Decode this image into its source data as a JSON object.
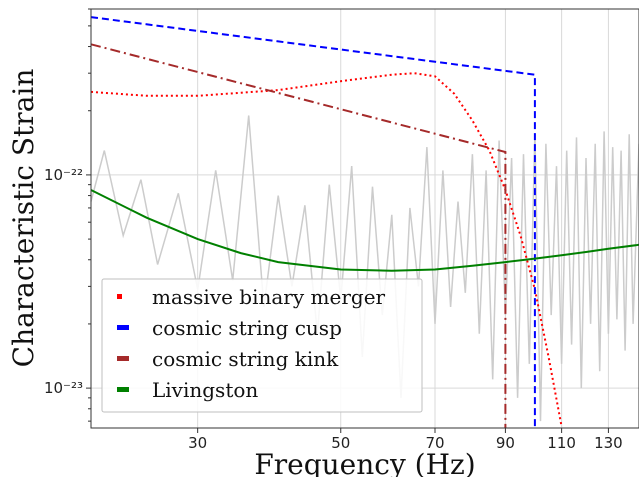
{
  "chart_data": {
    "type": "line",
    "xlabel": "Frequency (Hz)",
    "ylabel": "Characteristic Strain",
    "x_scale": "log",
    "y_scale": "log",
    "xlim": [
      20.5,
      145
    ],
    "ylim": [
      6.5e-24,
      6e-22
    ],
    "x_ticks": [
      30,
      50,
      70,
      90,
      110,
      130
    ],
    "x_tick_labels": [
      "30",
      "50",
      "70",
      "90",
      "110",
      "130"
    ],
    "y_ticks": [
      1e-23,
      1e-22
    ],
    "y_tick_labels": [
      "10⁻²³",
      "10⁻²²"
    ],
    "grid": true,
    "legend_position": "lower-left",
    "series": [
      {
        "name": "massive binary merger",
        "color": "#ff0000",
        "style": "dotted",
        "x": [
          20.5,
          25,
          30,
          40,
          50,
          60,
          65,
          70,
          75,
          80,
          85,
          90,
          95,
          100,
          105,
          110
        ],
        "y": [
          2.45e-22,
          2.35e-22,
          2.35e-22,
          2.5e-22,
          2.75e-22,
          2.95e-22,
          3e-22,
          2.9e-22,
          2.4e-22,
          1.8e-22,
          1.3e-22,
          8.5e-23,
          5.2e-23,
          2.9e-23,
          1.4e-23,
          6.6e-24
        ]
      },
      {
        "name": "cosmic string cusp",
        "color": "#0000ff",
        "style": "dashed",
        "x": [
          20.5,
          100,
          100
        ],
        "y": [
          5.5e-22,
          2.95e-22,
          6.5e-24
        ]
      },
      {
        "name": "cosmic string kink",
        "color": "#a52a2a",
        "style": "dashdot",
        "x": [
          20.5,
          90,
          90
        ],
        "y": [
          4.1e-22,
          1.28e-22,
          6.5e-24
        ]
      },
      {
        "name": "Livingston",
        "color": "#008000",
        "style": "solid",
        "x": [
          20.5,
          25,
          30,
          35,
          40,
          50,
          60,
          70,
          80,
          90,
          100,
          110,
          120,
          130,
          145
        ],
        "y": [
          8.5e-23,
          6.3e-23,
          5e-23,
          4.3e-23,
          3.9e-23,
          3.6e-23,
          3.55e-23,
          3.6e-23,
          3.75e-23,
          3.9e-23,
          4.05e-23,
          4.2e-23,
          4.35e-23,
          4.5e-23,
          4.7e-23
        ]
      }
    ],
    "noise_trace": {
      "color": "#cccccc",
      "x": [
        20.5,
        21.5,
        23,
        24.5,
        26,
        28,
        30,
        32,
        34,
        36,
        38,
        40,
        42,
        44,
        46,
        48,
        50,
        52,
        54,
        56,
        58,
        60,
        62,
        64,
        66,
        68,
        70,
        72,
        74,
        76,
        78,
        80,
        82,
        84,
        86,
        88,
        90,
        92,
        94,
        96,
        98,
        100,
        102,
        104,
        106,
        108,
        110,
        112,
        114,
        116,
        118,
        120,
        122,
        124,
        126,
        128,
        130,
        132,
        134,
        136,
        138,
        140,
        142,
        145
      ],
      "y": [
        7.5e-23,
        1.3e-22,
        5.2e-23,
        9.5e-23,
        3.8e-23,
        8.2e-23,
        2.9e-23,
        1.05e-22,
        3.2e-23,
        1.9e-22,
        2.4e-23,
        8e-23,
        3e-23,
        7.2e-23,
        1.8e-23,
        9e-23,
        2.6e-23,
        1.1e-22,
        1.4e-23,
        8.8e-23,
        2.2e-23,
        6.5e-23,
        9e-24,
        7e-23,
        3e-23,
        1.35e-22,
        2e-23,
        1.05e-22,
        2.4e-23,
        7.5e-23,
        2.8e-23,
        1.25e-22,
        1.8e-23,
        1.05e-22,
        1.1e-23,
        1.45e-22,
        2.2e-23,
        1.2e-22,
        9e-24,
        1.25e-22,
        1.3e-23,
        1.55e-22,
        7e-24,
        1.4e-22,
        2.2e-23,
        1.1e-22,
        1.3e-23,
        1.3e-22,
        1.6e-23,
        1.5e-22,
        1e-23,
        1.2e-22,
        2e-23,
        1.4e-22,
        1.2e-23,
        1.6e-22,
        1.8e-23,
        1.35e-22,
        2.1e-23,
        1.3e-22,
        1.5e-23,
        1.55e-22,
        2e-23,
        1.4e-22
      ]
    }
  }
}
